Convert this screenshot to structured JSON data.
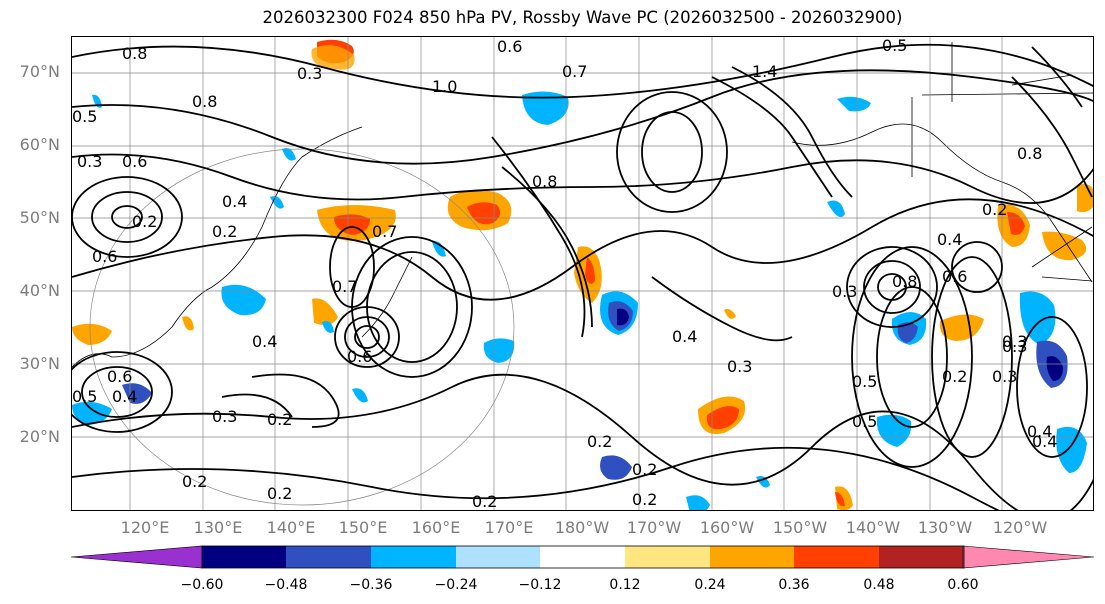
{
  "title": "2026032300 F024 850 hPa PV, Rossby Wave PC (2026032500 - 2026032900)",
  "latitude_labels": [
    "70°N",
    "60°N",
    "50°N",
    "40°N",
    "30°N",
    "20°N"
  ],
  "longitude_labels": [
    "120°E",
    "130°E",
    "140°E",
    "150°E",
    "160°E",
    "170°E",
    "180°W",
    "170°W",
    "160°W",
    "150°W",
    "140°W",
    "130°W",
    "120°W"
  ],
  "colorbar": {
    "colors": [
      "#9b30d0",
      "#000080",
      "#3050c0",
      "#00b4ff",
      "#aee0ff",
      "#ffffff",
      "#ffe680",
      "#ffa500",
      "#ff4000",
      "#b22222",
      "#ff88b0"
    ],
    "tick_labels": [
      "−0.60",
      "−0.48",
      "−0.36",
      "−0.24",
      "−0.12",
      "0.12",
      "0.24",
      "0.36",
      "0.48",
      "0.60"
    ]
  },
  "contour_labels": [
    "0.6",
    "0.8",
    "0.5",
    "0.3",
    "0.7",
    "1.0",
    "1.4",
    "0.8",
    "0.5",
    "0.8",
    "0.3",
    "0.4",
    "0.6",
    "0.2",
    "0.4",
    "0.2",
    "0.7",
    "0.8",
    "0.2",
    "0.6",
    "0.3",
    "0.8",
    "0.4",
    "0.6",
    "0.7",
    "0.4",
    "0.3",
    "0.2",
    "0.3",
    "0.5",
    "0.6",
    "0.4",
    "0.5",
    "0.3",
    "0.6",
    "0.2",
    "0.3",
    "0.4",
    "0.2",
    "0.2",
    "0.2",
    "0.2",
    "0.2",
    "0.2",
    "0.5",
    "0.3",
    "0.4"
  ]
}
